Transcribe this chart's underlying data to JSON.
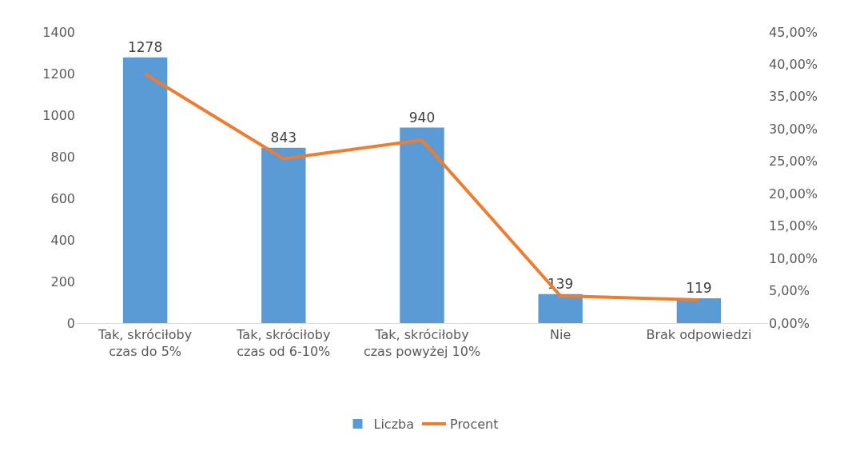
{
  "chart_data": {
    "type": "bar",
    "categories": [
      "Tak, skróciłoby czas do 5%",
      "Tak, skróciłoby czas od 6-10%",
      "Tak, skróciłoby czas powyżej 10%",
      "Nie",
      "Brak odpowiedzi"
    ],
    "series": [
      {
        "name": "Liczba",
        "color": "#5b9bd5",
        "values": [
          1278,
          843,
          940,
          139,
          119
        ],
        "data_labels": true
      },
      {
        "name": "Procent",
        "type": "line",
        "axis": "y2",
        "color": "#ed7d31",
        "values": [
          38.5,
          25.4,
          28.3,
          4.2,
          3.6
        ],
        "marker": "none",
        "line_style": "solid"
      }
    ],
    "ylim": [
      0,
      1400
    ],
    "yticks": [
      0,
      200,
      400,
      600,
      800,
      1000,
      1200,
      1400
    ],
    "y2lim": [
      0,
      45
    ],
    "y2ticks": [
      {
        "value": 0,
        "label": "0,00%"
      },
      {
        "value": 5,
        "label": "5,00%"
      },
      {
        "value": 10,
        "label": "10,00%"
      },
      {
        "value": 15,
        "label": "15,00%"
      },
      {
        "value": 20,
        "label": "20,00%"
      },
      {
        "value": 25,
        "label": "25,00%"
      },
      {
        "value": 30,
        "label": "30,00%"
      },
      {
        "value": 35,
        "label": "35,00%"
      },
      {
        "value": 40,
        "label": "40,00%"
      },
      {
        "value": 45,
        "label": "45,00%"
      }
    ],
    "grid": false,
    "legend": "bottom"
  }
}
